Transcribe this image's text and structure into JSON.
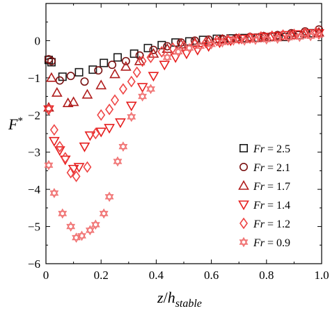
{
  "chart_data": {
    "type": "scatter",
    "xlabel": {
      "main": "z",
      "sep": "/",
      "sym": "h",
      "sub": "stable"
    },
    "ylabel": {
      "main": "F",
      "sup": "*"
    },
    "xlim": [
      0,
      1
    ],
    "ylim": [
      -6,
      1
    ],
    "xticks": [
      "0",
      "0.2",
      "0.4",
      "0.6",
      "0.8",
      "1.0"
    ],
    "xtick_values": [
      0,
      0.2,
      0.4,
      0.6,
      0.8,
      1.0
    ],
    "yticks": [
      "0",
      "−1",
      "−2",
      "−3",
      "−4",
      "−5",
      "−6"
    ],
    "ytick_values": [
      0,
      -1,
      -2,
      -3,
      -4,
      -5,
      -6
    ],
    "legend_position": "lower-right",
    "legend_var": "Fr",
    "series": [
      {
        "name": "Fr = 2.5",
        "value_label": "2.5",
        "marker": "square",
        "color": "#1a1a1a",
        "x": [
          0.01,
          0.02,
          0.06,
          0.12,
          0.17,
          0.21,
          0.26,
          0.32,
          0.37,
          0.42,
          0.47,
          0.52,
          0.57,
          0.62,
          0.67,
          0.72,
          0.77,
          0.82,
          0.87,
          0.92,
          0.97
        ],
        "y": [
          -0.52,
          -0.58,
          -0.97,
          -0.85,
          -0.78,
          -0.6,
          -0.45,
          -0.35,
          -0.2,
          -0.12,
          -0.05,
          -0.02,
          0.02,
          0.05,
          0.06,
          0.07,
          0.08,
          0.1,
          0.1,
          0.15,
          0.2
        ]
      },
      {
        "name": "Fr = 2.1",
        "value_label": "2.1",
        "marker": "circle",
        "color": "#7a1212",
        "x": [
          0.01,
          0.02,
          0.05,
          0.09,
          0.14,
          0.19,
          0.24,
          0.29,
          0.34,
          0.39,
          0.44,
          0.49,
          0.54,
          0.59,
          0.64,
          0.69,
          0.74,
          0.79,
          0.84,
          0.89,
          0.94,
          0.99
        ],
        "y": [
          -0.5,
          -0.55,
          -1.07,
          -0.95,
          -1.1,
          -0.8,
          -0.65,
          -0.55,
          -0.4,
          -0.25,
          -0.15,
          -0.05,
          0.0,
          0.03,
          0.05,
          0.07,
          0.1,
          0.12,
          0.15,
          0.2,
          0.25,
          0.3
        ]
      },
      {
        "name": "Fr = 1.7",
        "value_label": "1.7",
        "marker": "triangle-up",
        "color": "#b01c1c",
        "x": [
          0.01,
          0.02,
          0.04,
          0.08,
          0.1,
          0.15,
          0.2,
          0.25,
          0.29,
          0.34,
          0.39,
          0.44,
          0.49,
          0.54,
          0.59,
          0.64,
          0.69,
          0.74,
          0.79,
          0.84,
          0.89,
          0.94,
          0.99
        ],
        "y": [
          -1.8,
          -1.0,
          -1.4,
          -1.68,
          -1.65,
          -1.45,
          -1.2,
          -0.9,
          -0.7,
          -0.55,
          -0.35,
          -0.22,
          -0.1,
          -0.05,
          -0.02,
          0.03,
          0.05,
          0.08,
          0.1,
          0.12,
          0.15,
          0.2,
          0.22
        ]
      },
      {
        "name": "Fr = 1.4",
        "value_label": "1.4",
        "marker": "triangle-down",
        "color": "#e61e1e",
        "x": [
          0.01,
          0.03,
          0.05,
          0.07,
          0.1,
          0.12,
          0.14,
          0.16,
          0.2,
          0.23,
          0.27,
          0.31,
          0.35,
          0.39,
          0.43,
          0.47,
          0.51,
          0.55,
          0.59,
          0.63,
          0.67,
          0.71,
          0.75,
          0.79,
          0.83,
          0.87,
          0.91,
          0.95,
          0.99
        ],
        "y": [
          -1.85,
          -2.7,
          -2.95,
          -3.2,
          -3.45,
          -3.4,
          -2.85,
          -2.55,
          -2.45,
          -2.35,
          -2.2,
          -1.75,
          -1.25,
          -0.95,
          -0.65,
          -0.45,
          -0.35,
          -0.25,
          -0.15,
          -0.05,
          0.0,
          0.05,
          0.08,
          0.1,
          0.12,
          0.15,
          0.17,
          0.2,
          0.2
        ]
      },
      {
        "name": "Fr = 1.2",
        "value_label": "1.2",
        "marker": "diamond",
        "color": "#ee4444",
        "x": [
          0.01,
          0.03,
          0.05,
          0.07,
          0.09,
          0.11,
          0.15,
          0.18,
          0.2,
          0.23,
          0.25,
          0.28,
          0.31,
          0.33,
          0.35,
          0.38,
          0.42,
          0.46,
          0.5,
          0.54,
          0.58,
          0.62,
          0.66,
          0.7,
          0.74,
          0.78,
          0.82,
          0.86,
          0.9,
          0.94,
          0.98
        ],
        "y": [
          -1.85,
          -2.4,
          -2.85,
          -3.15,
          -3.55,
          -3.65,
          -3.4,
          -2.5,
          -2.0,
          -1.85,
          -1.6,
          -1.3,
          -1.1,
          -0.85,
          -0.55,
          -0.45,
          -0.3,
          -0.2,
          -0.15,
          -0.1,
          -0.05,
          0.0,
          0.02,
          0.05,
          0.07,
          0.1,
          0.12,
          0.15,
          0.17,
          0.2,
          0.22
        ]
      },
      {
        "name": "Fr = 0.9",
        "value_label": "0.9",
        "marker": "hexagram",
        "color": "#f07070",
        "x": [
          0.01,
          0.03,
          0.06,
          0.09,
          0.11,
          0.13,
          0.16,
          0.18,
          0.21,
          0.23,
          0.26,
          0.28,
          0.31,
          0.35,
          0.38,
          0.44,
          0.48,
          0.52,
          0.56,
          0.6,
          0.64,
          0.68,
          0.72,
          0.76,
          0.8,
          0.84,
          0.88,
          0.92,
          0.96,
          0.99
        ],
        "y": [
          -3.35,
          -4.1,
          -4.65,
          -5.0,
          -5.3,
          -5.25,
          -5.1,
          -4.95,
          -4.65,
          -4.2,
          -3.25,
          -2.85,
          -2.05,
          -1.5,
          -1.3,
          -0.45,
          -0.3,
          -0.2,
          -0.15,
          -0.1,
          -0.05,
          0.0,
          0.0,
          0.02,
          0.03,
          0.05,
          0.08,
          0.1,
          0.12,
          0.15
        ]
      }
    ]
  }
}
